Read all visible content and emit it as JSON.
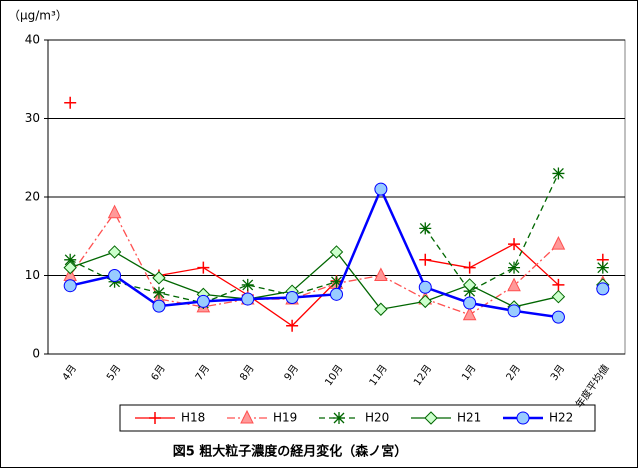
{
  "chart_data": {
    "type": "line",
    "title": "図5  粗大粒子濃度の経月変化（森ノ宮）",
    "y_axis_label": "（μg/m³）",
    "categories": [
      "4月",
      "5月",
      "6月",
      "7月",
      "8月",
      "9月",
      "10月",
      "11月",
      "12月",
      "1月",
      "2月",
      "3月",
      "年度平均値"
    ],
    "series": [
      {
        "name": "H18",
        "color": "#ff0000",
        "marker": "plus",
        "dash": "solid",
        "values": [
          32,
          null,
          10,
          11,
          7.5,
          3.6,
          9.3,
          null,
          12,
          11,
          14,
          8.8,
          12
        ]
      },
      {
        "name": "H19",
        "color": "#ff5050",
        "marker": "triangle",
        "dash": "dashdot",
        "values": [
          10,
          18,
          7,
          6,
          7,
          7,
          9,
          10,
          7,
          5,
          8.7,
          14,
          9
        ]
      },
      {
        "name": "H20",
        "color": "#006600",
        "marker": "star",
        "dash": "dashed",
        "values": [
          12,
          9.2,
          7.8,
          6.5,
          8.8,
          7.5,
          9.2,
          null,
          16,
          8,
          11,
          23,
          11
        ]
      },
      {
        "name": "H21",
        "color": "#006600",
        "marker": "diamond",
        "dash": "solid",
        "values": [
          11,
          13,
          9.7,
          7.6,
          7,
          8,
          13,
          5.7,
          6.7,
          8.8,
          6,
          7.3,
          8.8
        ]
      },
      {
        "name": "H22",
        "color": "#0000ff",
        "marker": "circle",
        "dash": "solid",
        "values": [
          8.7,
          10,
          6.1,
          6.7,
          7,
          7.2,
          7.6,
          21,
          8.5,
          6.5,
          5.5,
          4.7,
          8.3
        ]
      }
    ],
    "last_category_unconnected": true,
    "ylim": [
      0,
      40
    ],
    "yticks": [
      0,
      10,
      20,
      30,
      40
    ],
    "grid": true,
    "legend": "bottom"
  }
}
